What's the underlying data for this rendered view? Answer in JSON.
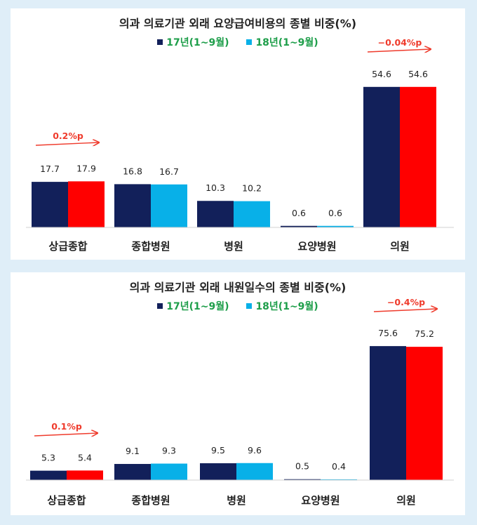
{
  "colors": {
    "series_2017": "#12205a",
    "series_2018_legend": "#08b0e8",
    "highlight_2018": "#ff0000",
    "annotation": "#ef3b2c",
    "legend_text": "#1e9e4a"
  },
  "chart_data": [
    {
      "type": "bar",
      "title": "의과 의료기관 외래 요양급여비용의 종별 비중(%)",
      "categories": [
        "상급종합",
        "종합병원",
        "병원",
        "요양병원",
        "의원"
      ],
      "series": [
        {
          "name": "17년(1~9월)",
          "values": [
            17.7,
            16.8,
            10.3,
            0.6,
            54.6
          ]
        },
        {
          "name": "18년(1~9월)",
          "values": [
            17.9,
            16.7,
            10.2,
            0.6,
            54.6
          ]
        }
      ],
      "highlight_categories": [
        0,
        4
      ],
      "annotations": [
        {
          "category": 0,
          "text": "0.2%p"
        },
        {
          "category": 4,
          "text": "−0.04%p"
        }
      ],
      "ylim": [
        0,
        60
      ],
      "legend": "top-center",
      "grid": false
    },
    {
      "type": "bar",
      "title": "의과 의료기관 외래 내원일수의 종별 비중(%)",
      "categories": [
        "상급종합",
        "종합병원",
        "병원",
        "요양병원",
        "의원"
      ],
      "series": [
        {
          "name": "17년(1~9월)",
          "values": [
            5.3,
            9.1,
            9.5,
            0.5,
            75.6
          ]
        },
        {
          "name": "18년(1~9월)",
          "values": [
            5.4,
            9.3,
            9.6,
            0.4,
            75.2
          ]
        }
      ],
      "highlight_categories": [
        0,
        4
      ],
      "annotations": [
        {
          "category": 0,
          "text": "0.1%p"
        },
        {
          "category": 4,
          "text": "−0.4%p"
        }
      ],
      "ylim": [
        0,
        80
      ],
      "legend": "top-center",
      "grid": false
    }
  ]
}
